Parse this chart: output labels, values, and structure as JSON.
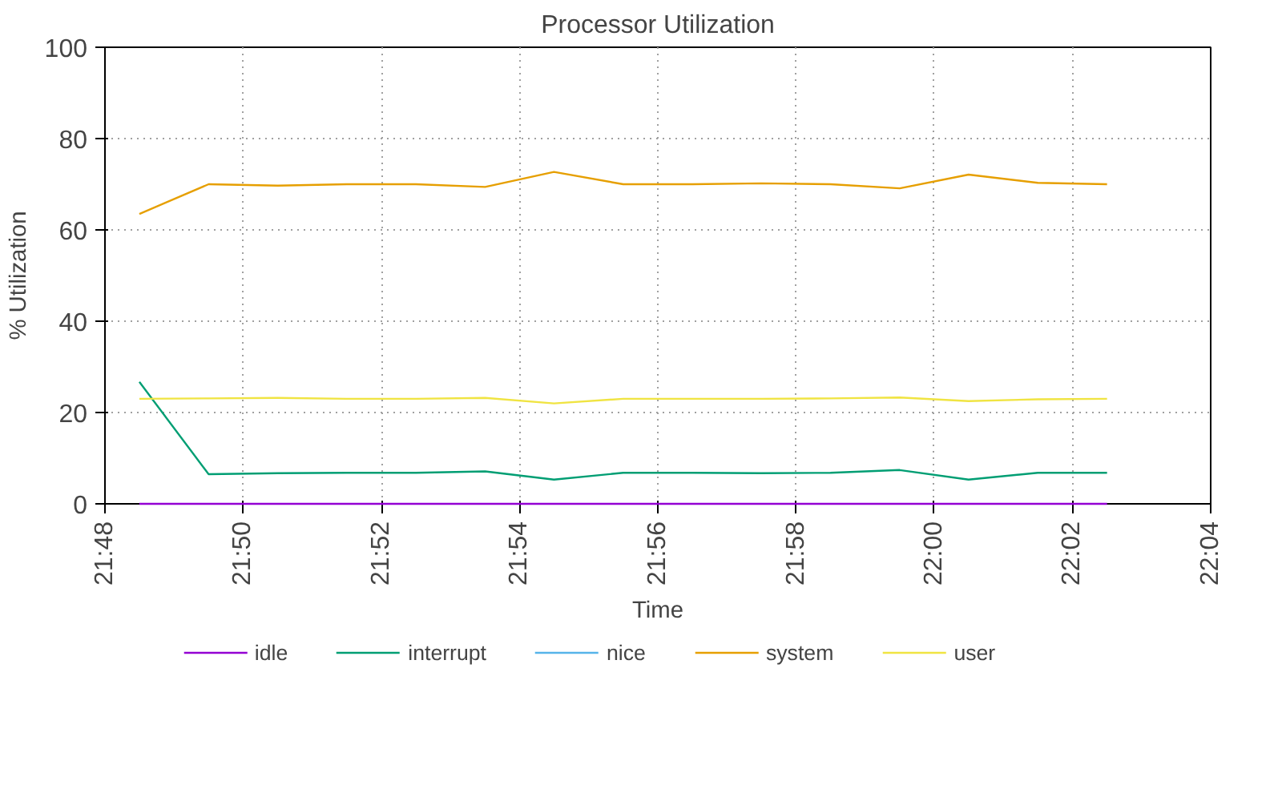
{
  "chart_data": {
    "type": "line",
    "title": "Processor Utilization",
    "xlabel": "Time",
    "ylabel": "% Utilization",
    "x": [
      21.8083,
      21.825,
      21.8417,
      21.8583,
      21.875,
      21.8917,
      21.9083,
      21.925,
      21.9417,
      21.9583,
      21.975,
      21.9917,
      22.0083,
      22.025,
      22.0417
    ],
    "xlim": [
      21.8,
      22.0667
    ],
    "xticks": [
      {
        "value": 21.8,
        "label": "21:48"
      },
      {
        "value": 21.8333,
        "label": "21:50"
      },
      {
        "value": 21.8667,
        "label": "21:52"
      },
      {
        "value": 21.9,
        "label": "21:54"
      },
      {
        "value": 21.9333,
        "label": "21:56"
      },
      {
        "value": 21.9667,
        "label": "21:58"
      },
      {
        "value": 22.0,
        "label": "22:00"
      },
      {
        "value": 22.0333,
        "label": "22:02"
      },
      {
        "value": 22.0667,
        "label": "22:04"
      }
    ],
    "ylim": [
      0,
      100
    ],
    "yticks": [
      0,
      20,
      40,
      60,
      80,
      100
    ],
    "grid": true,
    "legend": "bottom",
    "line_style": "solid",
    "series": [
      {
        "name": "idle",
        "color": "#9400d3",
        "values": [
          0,
          0,
          0,
          0,
          0,
          0,
          0,
          0,
          0,
          0,
          0,
          0,
          0,
          0,
          0
        ]
      },
      {
        "name": "interrupt",
        "color": "#009e73",
        "values": [
          26.7,
          6.5,
          6.7,
          6.8,
          6.8,
          7.1,
          5.3,
          6.8,
          6.8,
          6.7,
          6.8,
          7.4,
          5.3,
          6.8,
          6.8
        ]
      },
      {
        "name": "nice",
        "color": "#56b4e9",
        "values": [
          null,
          null,
          null,
          null,
          null,
          null,
          null,
          null,
          null,
          null,
          null,
          null,
          null,
          null,
          null
        ]
      },
      {
        "name": "system",
        "color": "#e69f00",
        "values": [
          63.5,
          70.0,
          69.7,
          70.0,
          70.0,
          69.4,
          72.7,
          70.0,
          70.0,
          70.2,
          70.0,
          69.1,
          72.1,
          70.3,
          70.0
        ]
      },
      {
        "name": "user",
        "color": "#f0e442",
        "values": [
          23.0,
          23.1,
          23.2,
          23.0,
          23.0,
          23.2,
          22.0,
          23.0,
          23.0,
          23.0,
          23.1,
          23.3,
          22.5,
          22.9,
          23.0
        ]
      }
    ]
  }
}
